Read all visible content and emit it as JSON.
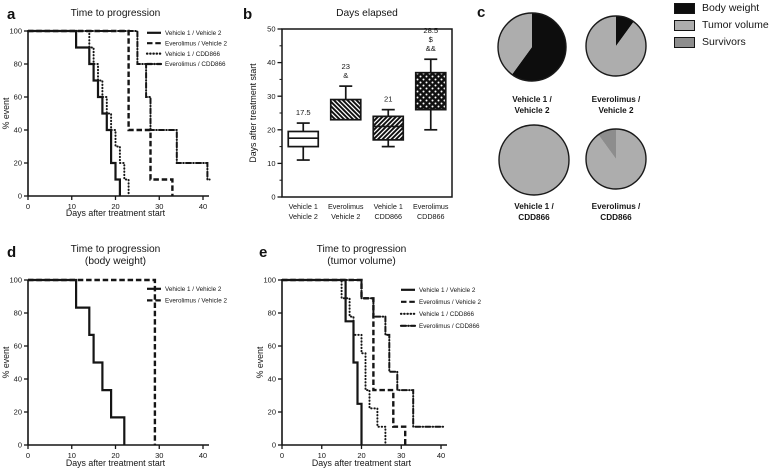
{
  "colors": {
    "background": "#ffffff",
    "ink": "#151515"
  },
  "panel_letters": {
    "a": "a",
    "b": "b",
    "c": "c",
    "d": "d",
    "e": "e"
  },
  "pie_legend": {
    "items": [
      {
        "label": "Body weight",
        "color": "#0d0d0d"
      },
      {
        "label": "Tumor volume",
        "color": "#adadad"
      },
      {
        "label": "Survivors",
        "color": "#8d8d8d"
      }
    ]
  },
  "chart_data": [
    {
      "id": "a",
      "type": "line",
      "step": true,
      "title": [
        "Time to progression"
      ],
      "xlabel": "Days after treatment start",
      "ylabel": "% event",
      "xlim": [
        0,
        42
      ],
      "ylim": [
        0,
        100
      ],
      "xticks": [
        0,
        10,
        20,
        30,
        40
      ],
      "yticks": [
        0,
        20,
        40,
        60,
        80,
        100
      ],
      "legend_position": "top-right",
      "series": [
        {
          "name": "Vehicle 1 / Vehicle 2",
          "style": "solid",
          "points": [
            [
              0,
              100
            ],
            [
              11,
              100
            ],
            [
              11,
              90
            ],
            [
              14,
              90
            ],
            [
              14,
              80
            ],
            [
              15,
              80
            ],
            [
              15,
              70
            ],
            [
              16,
              70
            ],
            [
              16,
              60
            ],
            [
              17,
              60
            ],
            [
              17,
              50
            ],
            [
              18,
              50
            ],
            [
              18,
              40
            ],
            [
              19,
              40
            ],
            [
              19,
              20
            ],
            [
              20,
              20
            ],
            [
              20,
              10
            ],
            [
              21,
              10
            ],
            [
              21,
              0
            ]
          ]
        },
        {
          "name": "Everolimus / Vehicle 2",
          "style": "dashed",
          "points": [
            [
              0,
              100
            ],
            [
              23,
              100
            ],
            [
              23,
              40
            ],
            [
              28,
              40
            ],
            [
              28,
              10
            ],
            [
              33,
              10
            ],
            [
              33,
              0
            ]
          ]
        },
        {
          "name": "Vehicle 1 / CDD866",
          "style": "dotted",
          "points": [
            [
              0,
              100
            ],
            [
              14,
              100
            ],
            [
              14,
              90
            ],
            [
              15,
              90
            ],
            [
              15,
              80
            ],
            [
              16,
              80
            ],
            [
              16,
              70
            ],
            [
              17,
              70
            ],
            [
              17,
              60
            ],
            [
              18,
              60
            ],
            [
              18,
              50
            ],
            [
              19,
              50
            ],
            [
              19,
              40
            ],
            [
              20,
              40
            ],
            [
              20,
              30
            ],
            [
              21,
              30
            ],
            [
              21,
              20
            ],
            [
              22,
              20
            ],
            [
              22,
              10
            ],
            [
              23,
              10
            ],
            [
              23,
              0
            ]
          ]
        },
        {
          "name": "Everolimus / CDD866",
          "style": "dashdot",
          "points": [
            [
              0,
              100
            ],
            [
              25,
              100
            ],
            [
              25,
              80
            ],
            [
              27,
              80
            ],
            [
              27,
              60
            ],
            [
              28,
              60
            ],
            [
              28,
              40
            ],
            [
              34,
              40
            ],
            [
              34,
              20
            ],
            [
              41,
              20
            ],
            [
              41,
              10
            ],
            [
              41.5,
              10
            ]
          ]
        }
      ]
    },
    {
      "id": "b",
      "type": "box",
      "title": [
        "Days elapsed"
      ],
      "ylabel": "Days after treatment start",
      "ylim": [
        0,
        50
      ],
      "yticks": [
        0,
        10,
        20,
        30,
        40,
        50
      ],
      "categories": [
        [
          "Vehicle 1",
          "Vehicle 2"
        ],
        [
          "Everolimus",
          "Vehicle 2"
        ],
        [
          "Vehicle 1",
          "CDD866"
        ],
        [
          "Everolimus",
          "CDD866"
        ]
      ],
      "boxes": [
        {
          "annotation": [
            "17.5"
          ],
          "whisker_low": 11,
          "q1": 15,
          "median": 17.5,
          "q3": 19.5,
          "whisker_high": 22,
          "fill": "white",
          "show_median": true
        },
        {
          "annotation": [
            "23",
            "&"
          ],
          "whisker_low": 23,
          "q1": 23,
          "median": 23,
          "q3": 29,
          "whisker_high": 33,
          "fill": "hatch-back",
          "show_median": false
        },
        {
          "annotation": [
            "21"
          ],
          "whisker_low": 15,
          "q1": 17,
          "median": 21,
          "q3": 24,
          "whisker_high": 26,
          "fill": "hatch-fwd",
          "show_median": true
        },
        {
          "annotation": [
            "28.5",
            "$",
            "&&"
          ],
          "whisker_low": 20,
          "q1": 26,
          "median": 28.5,
          "q3": 37,
          "whisker_high": 41,
          "fill": "dots-dark",
          "show_median": false
        }
      ]
    },
    {
      "id": "c",
      "type": "pie",
      "legend": [
        "Body weight",
        "Tumor volume",
        "Survivors"
      ],
      "pies": [
        {
          "label": [
            "Vehicle 1 /",
            "Vehicle 2"
          ],
          "slices": [
            {
              "name": "Body weight",
              "value": 60
            },
            {
              "name": "Tumor volume",
              "value": 40
            }
          ]
        },
        {
          "label": [
            "Everolimus /",
            "Vehicle 2"
          ],
          "slices": [
            {
              "name": "Body weight",
              "value": 10
            },
            {
              "name": "Tumor volume",
              "value": 90
            }
          ]
        },
        {
          "label": [
            "Vehicle 1 /",
            "CDD866"
          ],
          "slices": [
            {
              "name": "Tumor volume",
              "value": 100
            }
          ]
        },
        {
          "label": [
            "Everolimus /",
            "CDD866"
          ],
          "slices": [
            {
              "name": "Tumor volume",
              "value": 90
            },
            {
              "name": "Survivors",
              "value": 10
            }
          ]
        }
      ]
    },
    {
      "id": "d",
      "type": "line",
      "step": true,
      "title": [
        "Time to progression",
        "(body weight)"
      ],
      "xlabel": "Days after treatment start",
      "ylabel": "% event",
      "xlim": [
        0,
        42
      ],
      "ylim": [
        0,
        100
      ],
      "xticks": [
        0,
        10,
        20,
        30,
        40
      ],
      "yticks": [
        0,
        20,
        40,
        60,
        80,
        100
      ],
      "legend_position": "top-right",
      "series": [
        {
          "name": "Vehicle 1 / Vehicle 2",
          "style": "solid",
          "points": [
            [
              0,
              100
            ],
            [
              11,
              100
            ],
            [
              11,
              83.3
            ],
            [
              14,
              83.3
            ],
            [
              14,
              66.7
            ],
            [
              15,
              66.7
            ],
            [
              15,
              50
            ],
            [
              17,
              50
            ],
            [
              17,
              33.3
            ],
            [
              19,
              33.3
            ],
            [
              19,
              16.7
            ],
            [
              22,
              16.7
            ],
            [
              22,
              0
            ]
          ]
        },
        {
          "name": "Everolimus / Vehicle 2",
          "style": "dashed",
          "points": [
            [
              0,
              100
            ],
            [
              29,
              100
            ],
            [
              29,
              0
            ]
          ]
        }
      ]
    },
    {
      "id": "e",
      "type": "line",
      "step": true,
      "title": [
        "Time to progression",
        "(tumor volume)"
      ],
      "xlabel": "Days after treatment start",
      "ylabel": "% event",
      "xlim": [
        0,
        42
      ],
      "ylim": [
        0,
        100
      ],
      "xticks": [
        0,
        10,
        20,
        30,
        40
      ],
      "yticks": [
        0,
        20,
        40,
        60,
        80,
        100
      ],
      "legend_position": "top-right",
      "series": [
        {
          "name": "Vehicle 1 / Vehicle 2",
          "style": "solid",
          "points": [
            [
              0,
              100
            ],
            [
              16,
              100
            ],
            [
              16,
              75
            ],
            [
              18,
              75
            ],
            [
              18,
              50
            ],
            [
              19,
              50
            ],
            [
              19,
              25
            ],
            [
              20,
              25
            ],
            [
              20,
              0
            ]
          ]
        },
        {
          "name": "Everolimus / Vehicle 2",
          "style": "dashed",
          "points": [
            [
              0,
              100
            ],
            [
              20,
              100
            ],
            [
              20,
              88.9
            ],
            [
              23,
              88.9
            ],
            [
              23,
              33.3
            ],
            [
              28,
              33.3
            ],
            [
              28,
              11.1
            ],
            [
              31,
              11.1
            ],
            [
              31,
              0
            ]
          ]
        },
        {
          "name": "Vehicle 1 / CDD866",
          "style": "dotted",
          "points": [
            [
              0,
              100
            ],
            [
              15,
              100
            ],
            [
              15,
              88.9
            ],
            [
              17,
              88.9
            ],
            [
              17,
              77.8
            ],
            [
              18,
              77.8
            ],
            [
              18,
              66.7
            ],
            [
              20,
              66.7
            ],
            [
              20,
              55.6
            ],
            [
              21,
              55.6
            ],
            [
              21,
              33.3
            ],
            [
              22,
              33.3
            ],
            [
              22,
              22.2
            ],
            [
              24,
              22.2
            ],
            [
              24,
              11.1
            ],
            [
              26,
              11.1
            ],
            [
              26,
              0
            ]
          ]
        },
        {
          "name": "Everolimus / CDD866",
          "style": "dashdot",
          "points": [
            [
              0,
              100
            ],
            [
              20,
              100
            ],
            [
              20,
              88.9
            ],
            [
              23,
              88.9
            ],
            [
              23,
              77.8
            ],
            [
              26,
              77.8
            ],
            [
              26,
              66.7
            ],
            [
              27,
              66.7
            ],
            [
              27,
              44.4
            ],
            [
              29,
              44.4
            ],
            [
              29,
              33.3
            ],
            [
              33,
              33.3
            ],
            [
              33,
              11.1
            ],
            [
              41,
              11.1
            ]
          ]
        }
      ]
    }
  ]
}
